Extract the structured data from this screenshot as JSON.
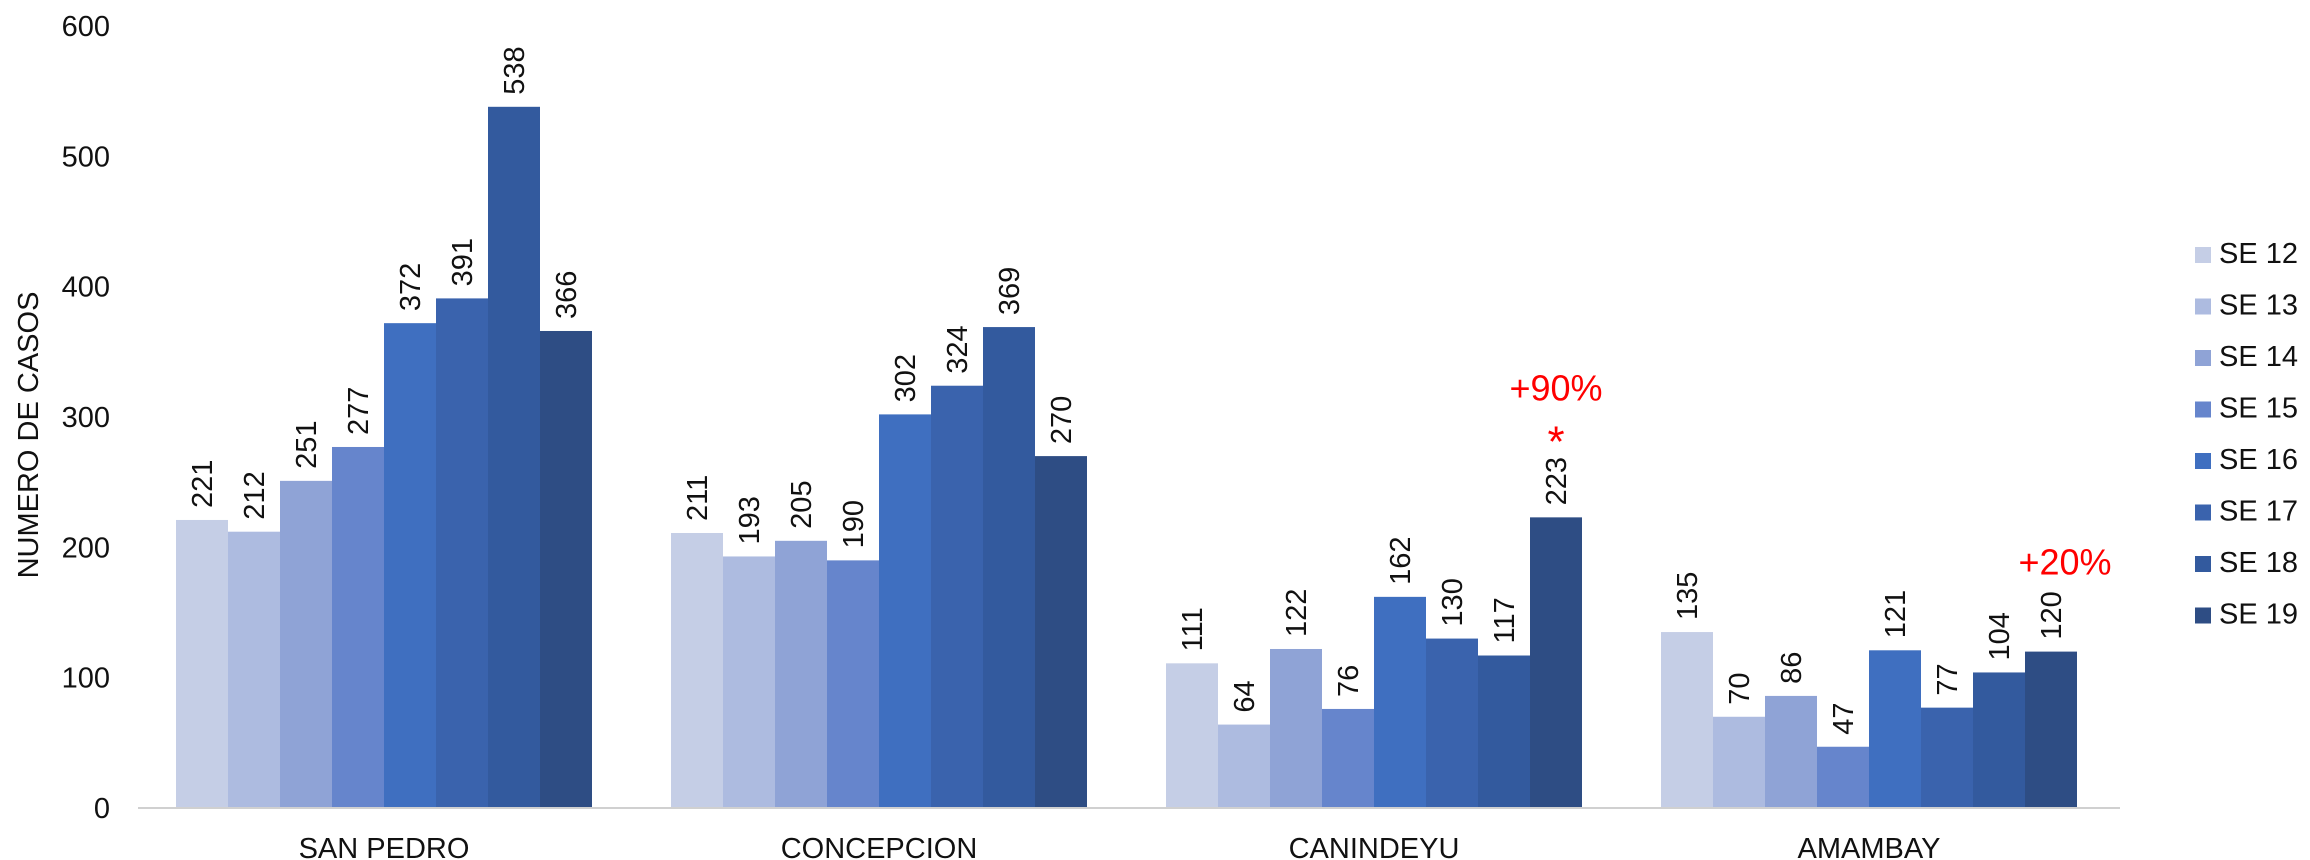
{
  "chart_data": {
    "type": "bar",
    "title": "",
    "xlabel": "",
    "ylabel": "NUMERO DE CASOS",
    "ylim": [
      0,
      600
    ],
    "yticks": [
      0,
      100,
      200,
      300,
      400,
      500,
      600
    ],
    "grid": false,
    "legend_position": "right",
    "categories": [
      "SAN PEDRO",
      "CONCEPCION",
      "CANINDEYU",
      "AMAMBAY"
    ],
    "series": [
      {
        "name": "SE 12",
        "color": "#c5cee6",
        "values": [
          221,
          211,
          111,
          135
        ]
      },
      {
        "name": "SE 13",
        "color": "#adbbe0",
        "values": [
          212,
          193,
          64,
          70
        ]
      },
      {
        "name": "SE 14",
        "color": "#8fa3d6",
        "values": [
          251,
          205,
          122,
          86
        ]
      },
      {
        "name": "SE 15",
        "color": "#6685cc",
        "values": [
          277,
          190,
          76,
          47
        ]
      },
      {
        "name": "SE 16",
        "color": "#3f6fc0",
        "values": [
          372,
          302,
          162,
          121
        ]
      },
      {
        "name": "SE 17",
        "color": "#3a63ad",
        "values": [
          391,
          324,
          130,
          77
        ]
      },
      {
        "name": "SE 18",
        "color": "#335a9e",
        "values": [
          538,
          369,
          117,
          104
        ]
      },
      {
        "name": "SE 19",
        "color": "#2e4d84",
        "values": [
          366,
          270,
          223,
          120
        ]
      }
    ],
    "annotations": [
      {
        "category": "CANINDEYU",
        "series": "SE 19",
        "text": "+90%",
        "marker": "*",
        "color": "#ff0000"
      },
      {
        "category": "AMAMBAY",
        "series": "SE 19",
        "text": "+20%",
        "marker": "",
        "color": "#ff0000"
      }
    ]
  }
}
